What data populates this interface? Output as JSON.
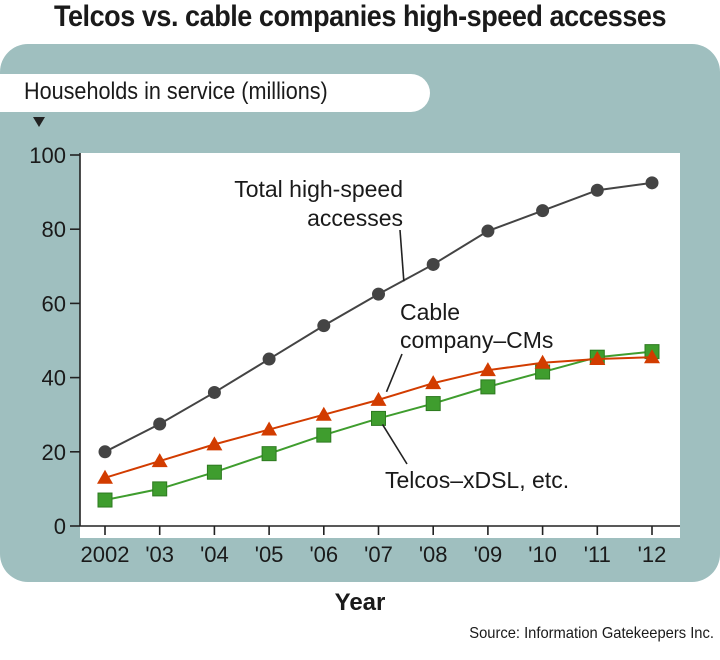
{
  "title": "Telcos vs. cable companies high-speed accesses",
  "source": "Source: Information Gatekeepers Inc.",
  "colors": {
    "panel": "#9fbfbf",
    "total": "#444444",
    "cable": "#d23c00",
    "telcos": "#3f9d2e"
  },
  "chart_data": {
    "type": "line",
    "title": "Telcos vs. cable companies high-speed accesses",
    "xlabel": "Year",
    "ylabel": "Households in service (millions)",
    "categories": [
      "2002",
      "'03",
      "'04",
      "'05",
      "'06",
      "'07",
      "'08",
      "'09",
      "'10",
      "'11",
      "'12"
    ],
    "ylim": [
      0,
      100
    ],
    "yticks": [
      0,
      20,
      40,
      60,
      80,
      100
    ],
    "grid": false,
    "series": [
      {
        "name": "Total high-speed accesses",
        "label_lines": [
          "Total high-speed",
          "accesses"
        ],
        "marker": "circle",
        "color": "#444444",
        "values": [
          20,
          27.5,
          36,
          45,
          54,
          62.5,
          70.5,
          79.5,
          85,
          90.5,
          92.5
        ]
      },
      {
        "name": "Cable company–CMs",
        "label_lines": [
          "Cable",
          "company–CMs"
        ],
        "marker": "triangle",
        "color": "#d23c00",
        "values": [
          13,
          17.5,
          22,
          26,
          30,
          34,
          38.5,
          42,
          44,
          45,
          45.5
        ]
      },
      {
        "name": "Telcos–xDSL, etc.",
        "label_lines": [
          "Telcos–xDSL, etc."
        ],
        "marker": "square",
        "color": "#3f9d2e",
        "values": [
          7,
          10,
          14.5,
          19.5,
          24.5,
          29,
          33,
          37.5,
          41.5,
          45.5,
          47
        ]
      }
    ]
  }
}
